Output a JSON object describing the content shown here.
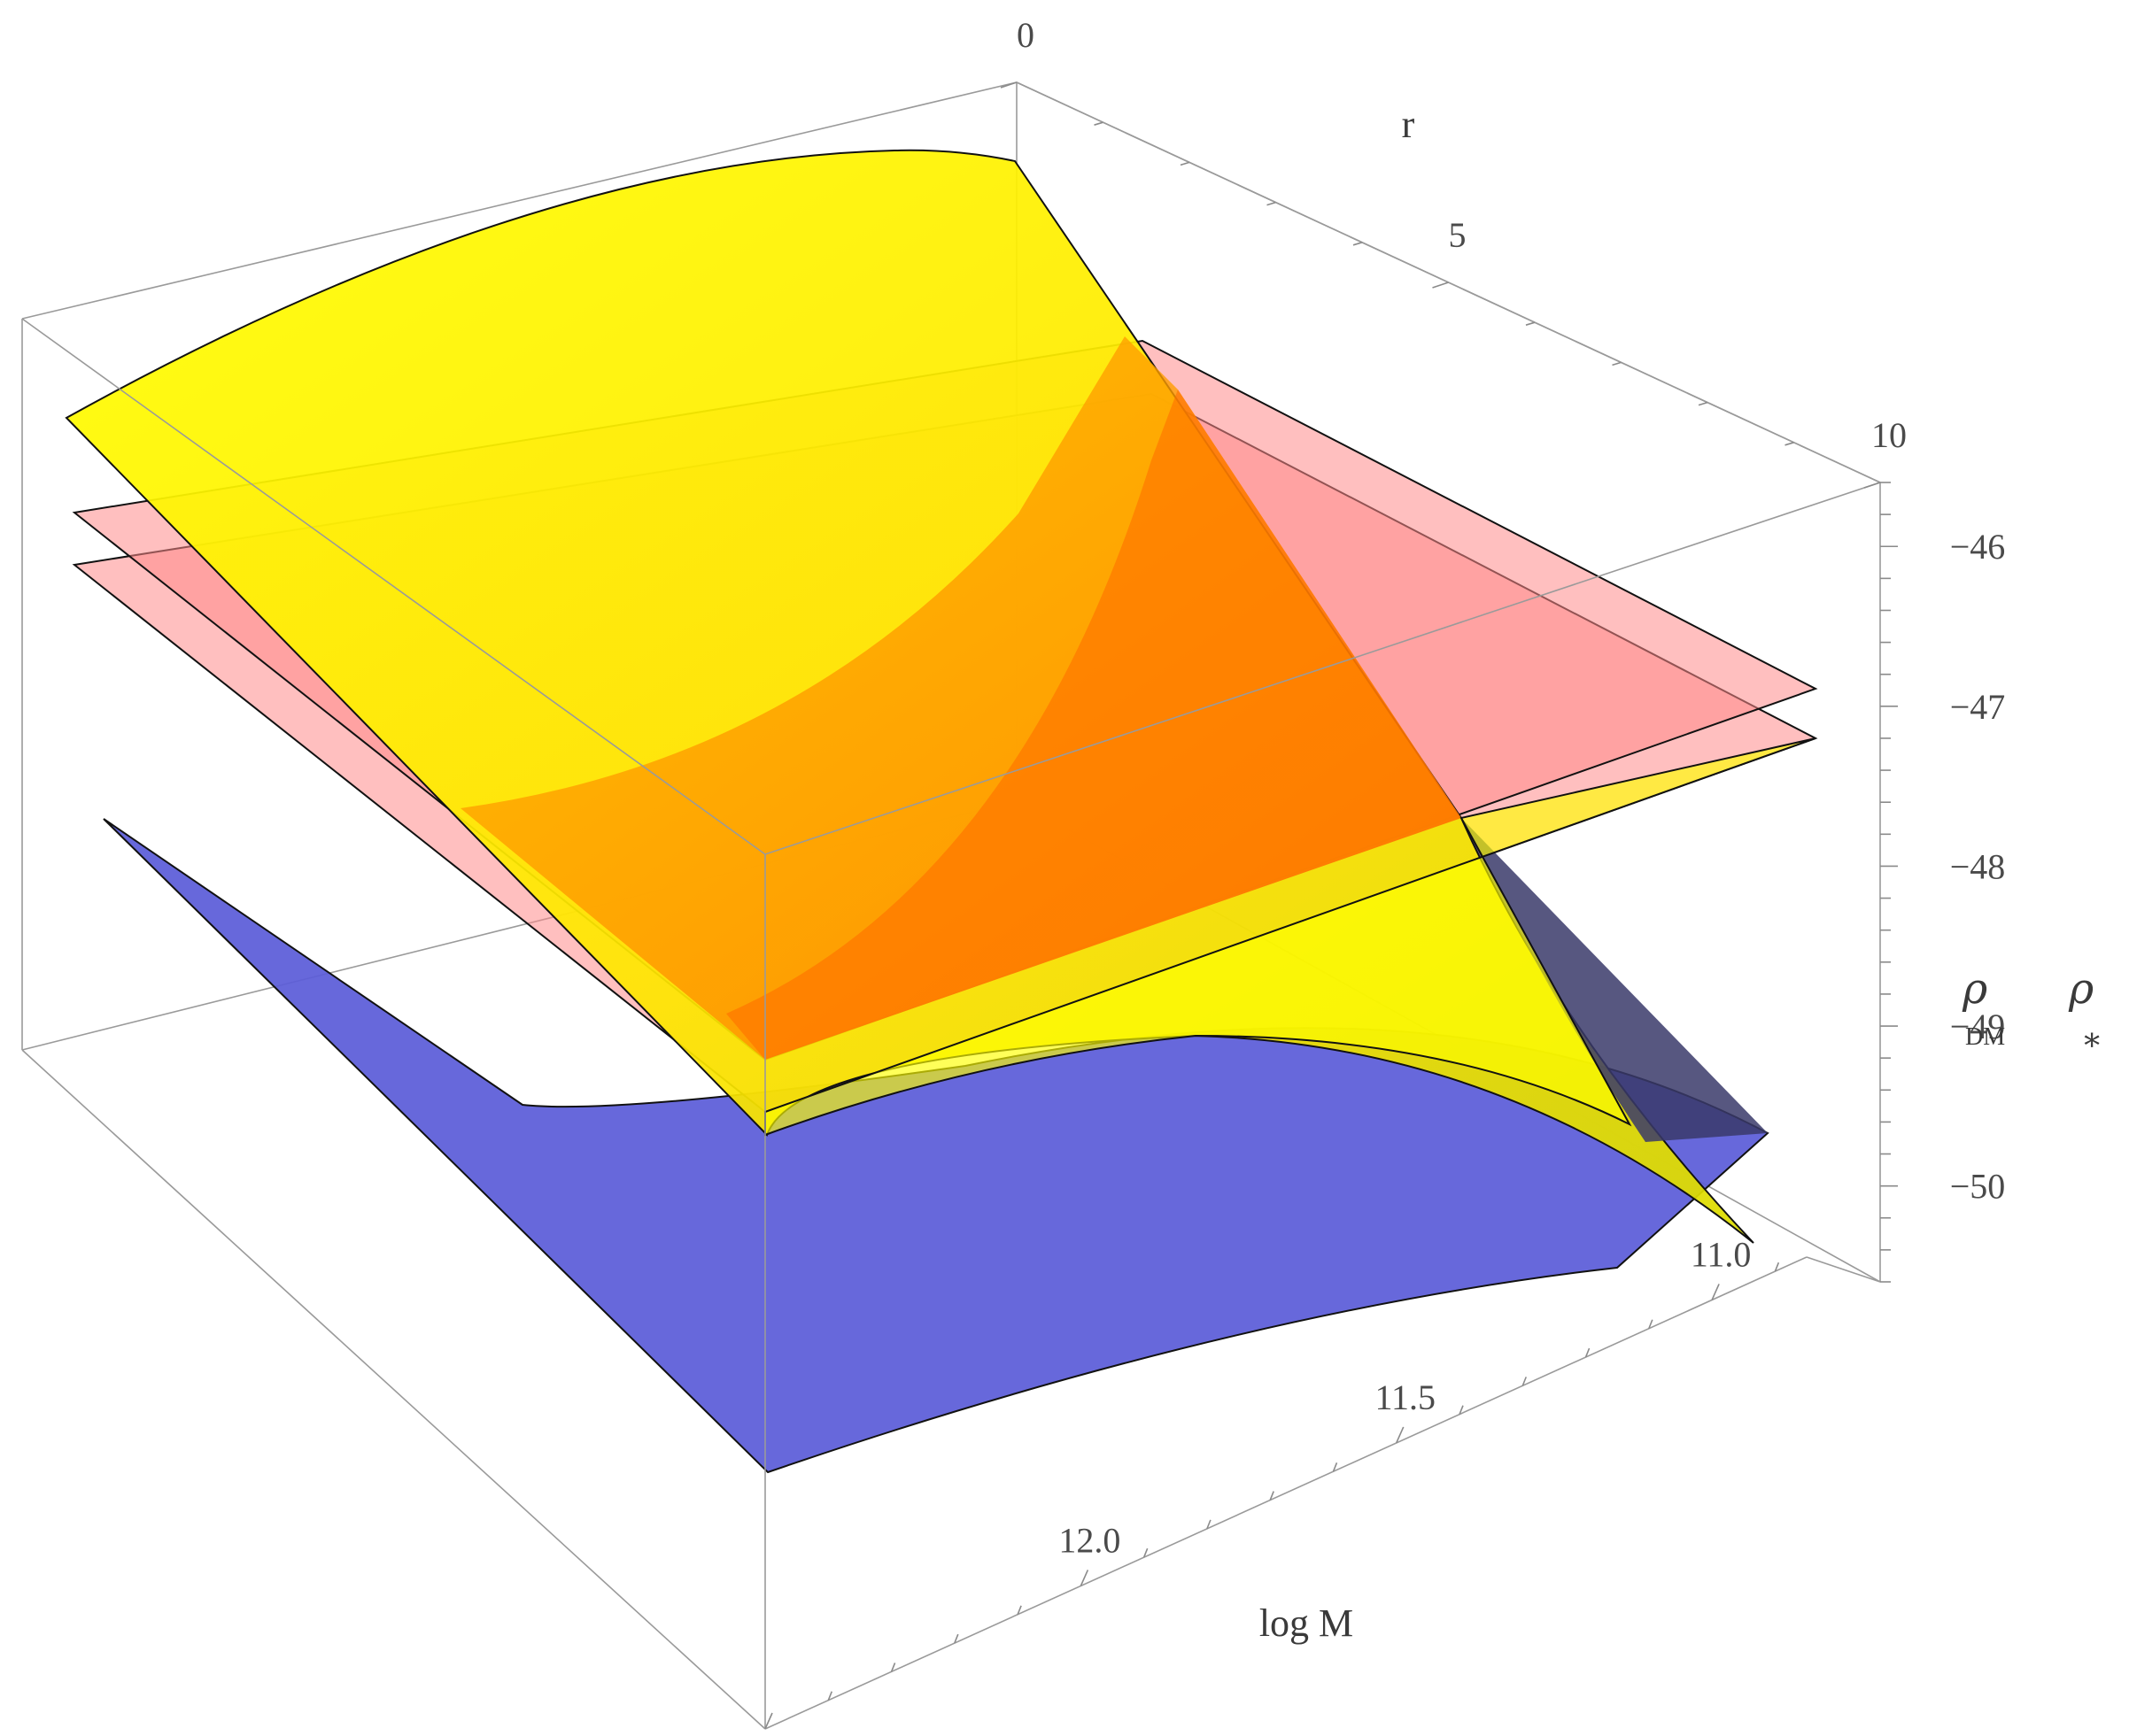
{
  "chart_data": {
    "type": "surface3d",
    "title": "",
    "axes": {
      "r": {
        "label": "r",
        "range": [
          0,
          10
        ],
        "ticks": [
          {
            "value": 0,
            "label": "0"
          },
          {
            "value": 5,
            "label": "5"
          },
          {
            "value": 10,
            "label": "10"
          }
        ]
      },
      "logM": {
        "label": "log M",
        "range": [
          10.85,
          12.5
        ],
        "ticks": [
          {
            "value": 11.0,
            "label": "11.0"
          },
          {
            "value": 11.5,
            "label": "11.5"
          },
          {
            "value": 12.0,
            "label": "12.0"
          }
        ]
      },
      "rho": {
        "label_main": "ρ",
        "label_sub": "DM",
        "label2_main": "ρ",
        "label2_sub": "∗",
        "range": [
          -50.6,
          -45.6
        ],
        "ticks": [
          {
            "value": -46,
            "label": "−46"
          },
          {
            "value": -47,
            "label": "−47"
          },
          {
            "value": -48,
            "label": "−48"
          },
          {
            "value": -49,
            "label": "−49"
          },
          {
            "value": -50,
            "label": "−50"
          }
        ]
      }
    },
    "surfaces": [
      {
        "id": "blue",
        "color": "#5b5cd8",
        "opacity": 0.93,
        "corners": {
          "r0_M1185": -48.1,
          "r0_M11": -48.75,
          "r10_M1185": -49.85,
          "r10_M11": -49.3
        }
      },
      {
        "id": "pink-lower",
        "color": "#ff8a8a",
        "opacity": 0.6,
        "corners": {
          "r0_M1185": -47.25,
          "r0_M11": -47.65,
          "r10_M1185": -48.4,
          "r10_M11": -47.1
        }
      },
      {
        "id": "pink-upper",
        "color": "#ff8a8a",
        "opacity": 0.6,
        "corners": {
          "r0_M1185": -46.95,
          "r0_M11": -47.3,
          "r10_M1185": -48.1,
          "r10_M11": -46.8
        }
      },
      {
        "id": "yellow",
        "color": "#ffff00",
        "opacity": 0.92,
        "corners": {
          "r0_M1185": -46.35,
          "r0_M11": -45.6,
          "r10_M1185": -48.55,
          "r10_M11": -50.6
        }
      }
    ]
  }
}
